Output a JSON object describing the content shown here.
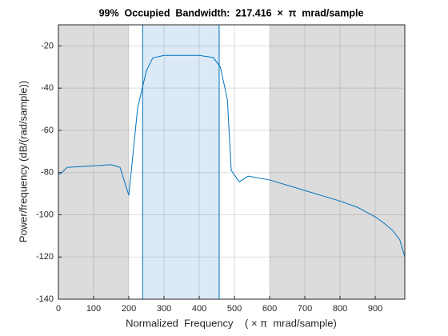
{
  "chart_data": {
    "type": "line",
    "title": "99%  Occupied  Bandwidth:  217.416  ×  π  mrad/sample",
    "xlabel": "Normalized  Frequency    ( × π  mrad/sample)",
    "ylabel": "Power/frequency (dB/(rad/sample))",
    "x": [
      0,
      10,
      25,
      50,
      100,
      150,
      175,
      200,
      225,
      250,
      268,
      300,
      400,
      440,
      460,
      480,
      491,
      514,
      539,
      600,
      700,
      800,
      850,
      900,
      925,
      950,
      970,
      984
    ],
    "values": [
      -81,
      -80,
      -77.5,
      -77.3,
      -76.8,
      -76.3,
      -77.5,
      -90.8,
      -49.5,
      -31.7,
      -25.7,
      -24.5,
      -24.5,
      -25.5,
      -30,
      -45.4,
      -79,
      -84.4,
      -81.7,
      -83.5,
      -88.5,
      -93.5,
      -96.5,
      -101,
      -104,
      -107.5,
      -112,
      -120
    ],
    "color": "#0072bd",
    "band": [
      239.3,
      456.7
    ],
    "band_color": "#dbeaf6",
    "shaded_regions": [
      [
        0,
        200
      ],
      [
        600,
        984
      ]
    ],
    "shade_color": "#dcdcdc",
    "xlim": [
      0,
      984
    ],
    "xticks": [
      0,
      100,
      200,
      300,
      400,
      500,
      600,
      700,
      800,
      900
    ],
    "ylim": [
      -140,
      -10
    ],
    "yticks": [
      -20,
      -40,
      -60,
      -80,
      -100,
      -120,
      -140
    ],
    "grid": true
  }
}
